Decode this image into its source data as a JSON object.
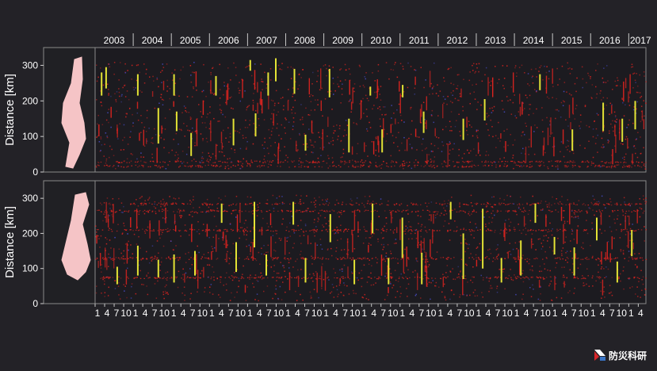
{
  "chart_data": [
    {
      "type": "scatter",
      "panel": "top",
      "ylabel": "Distance [km]",
      "y_ticks": [
        0,
        100,
        200,
        300
      ],
      "ylim": [
        0,
        350
      ],
      "x_year_labels": [
        "2003",
        "2004",
        "2005",
        "2006",
        "2007",
        "2008",
        "2009",
        "2010",
        "2011",
        "2012",
        "2013",
        "2014",
        "2015",
        "2016",
        "2017"
      ],
      "xlim": [
        2003.0,
        2017.45
      ],
      "background_colors": {
        "scatter": "#e8241f",
        "tremor_burst": "#e3e335",
        "deep": "#4a4fd0"
      },
      "continuous_bands_km": [
        18,
        30
      ],
      "tremor_lines": [
        {
          "x": 2003.17,
          "y0": 215,
          "y1": 280
        },
        {
          "x": 2003.29,
          "y0": 235,
          "y1": 295
        },
        {
          "x": 2004.12,
          "y0": 215,
          "y1": 275
        },
        {
          "x": 2004.66,
          "y0": 80,
          "y1": 180
        },
        {
          "x": 2005.07,
          "y0": 215,
          "y1": 275
        },
        {
          "x": 2005.14,
          "y0": 115,
          "y1": 170
        },
        {
          "x": 2005.52,
          "y0": 45,
          "y1": 110
        },
        {
          "x": 2006.17,
          "y0": 215,
          "y1": 270
        },
        {
          "x": 2006.63,
          "y0": 75,
          "y1": 150
        },
        {
          "x": 2007.07,
          "y0": 285,
          "y1": 315
        },
        {
          "x": 2007.21,
          "y0": 100,
          "y1": 165
        },
        {
          "x": 2007.54,
          "y0": 215,
          "y1": 280
        },
        {
          "x": 2007.74,
          "y0": 255,
          "y1": 320
        },
        {
          "x": 2008.23,
          "y0": 220,
          "y1": 290
        },
        {
          "x": 2008.52,
          "y0": 60,
          "y1": 105
        },
        {
          "x": 2009.15,
          "y0": 210,
          "y1": 290
        },
        {
          "x": 2009.66,
          "y0": 55,
          "y1": 150
        },
        {
          "x": 2010.22,
          "y0": 215,
          "y1": 240
        },
        {
          "x": 2010.53,
          "y0": 55,
          "y1": 120
        },
        {
          "x": 2011.07,
          "y0": 210,
          "y1": 245
        },
        {
          "x": 2011.62,
          "y0": 110,
          "y1": 170
        },
        {
          "x": 2012.66,
          "y0": 90,
          "y1": 150
        },
        {
          "x": 2013.22,
          "y0": 145,
          "y1": 205
        },
        {
          "x": 2014.67,
          "y0": 230,
          "y1": 275
        },
        {
          "x": 2015.52,
          "y0": 60,
          "y1": 120
        },
        {
          "x": 2016.33,
          "y0": 115,
          "y1": 195
        },
        {
          "x": 2016.83,
          "y0": 85,
          "y1": 150
        },
        {
          "x": 2017.17,
          "y0": 120,
          "y1": 200
        }
      ]
    },
    {
      "type": "scatter",
      "panel": "bottom",
      "ylabel": "Distance [km]",
      "y_ticks": [
        0,
        100,
        200,
        300
      ],
      "ylim": [
        0,
        350
      ],
      "x_month_labels": [
        "1",
        "4",
        "7",
        "10"
      ],
      "x_year_labels": [
        "2003",
        "2004",
        "2005",
        "2006",
        "2007",
        "2008",
        "2009",
        "2010",
        "2011",
        "2012",
        "2013",
        "2014",
        "2015",
        "2016",
        "2017"
      ],
      "xlim": [
        2003.0,
        2017.45
      ],
      "background_colors": {
        "scatter": "#e8241f",
        "tremor_burst": "#e3e335",
        "deep": "#4a4fd0"
      },
      "continuous_bands_km": [
        285,
        265,
        210,
        130,
        75
      ],
      "tremor_lines": [
        {
          "x": 2003.58,
          "y0": 55,
          "y1": 105
        },
        {
          "x": 2004.12,
          "y0": 80,
          "y1": 165
        },
        {
          "x": 2004.66,
          "y0": 75,
          "y1": 125
        },
        {
          "x": 2005.07,
          "y0": 60,
          "y1": 140
        },
        {
          "x": 2005.62,
          "y0": 80,
          "y1": 150
        },
        {
          "x": 2006.32,
          "y0": 230,
          "y1": 285
        },
        {
          "x": 2006.7,
          "y0": 90,
          "y1": 175
        },
        {
          "x": 2007.18,
          "y0": 160,
          "y1": 290
        },
        {
          "x": 2007.49,
          "y0": 80,
          "y1": 140
        },
        {
          "x": 2008.2,
          "y0": 225,
          "y1": 290
        },
        {
          "x": 2008.52,
          "y0": 60,
          "y1": 130
        },
        {
          "x": 2009.17,
          "y0": 175,
          "y1": 255
        },
        {
          "x": 2009.8,
          "y0": 55,
          "y1": 125
        },
        {
          "x": 2010.28,
          "y0": 200,
          "y1": 285
        },
        {
          "x": 2010.7,
          "y0": 55,
          "y1": 130
        },
        {
          "x": 2011.06,
          "y0": 130,
          "y1": 245
        },
        {
          "x": 2011.57,
          "y0": 55,
          "y1": 145
        },
        {
          "x": 2012.33,
          "y0": 240,
          "y1": 290
        },
        {
          "x": 2012.66,
          "y0": 70,
          "y1": 200
        },
        {
          "x": 2013.17,
          "y0": 100,
          "y1": 270
        },
        {
          "x": 2013.66,
          "y0": 60,
          "y1": 130
        },
        {
          "x": 2014.17,
          "y0": 80,
          "y1": 180
        },
        {
          "x": 2014.55,
          "y0": 230,
          "y1": 285
        },
        {
          "x": 2015.05,
          "y0": 140,
          "y1": 190
        },
        {
          "x": 2015.57,
          "y0": 80,
          "y1": 160
        },
        {
          "x": 2016.16,
          "y0": 180,
          "y1": 245
        },
        {
          "x": 2016.7,
          "y0": 60,
          "y1": 120
        },
        {
          "x": 2017.08,
          "y0": 135,
          "y1": 210
        }
      ]
    }
  ],
  "logo": {
    "text": "防災科研"
  }
}
